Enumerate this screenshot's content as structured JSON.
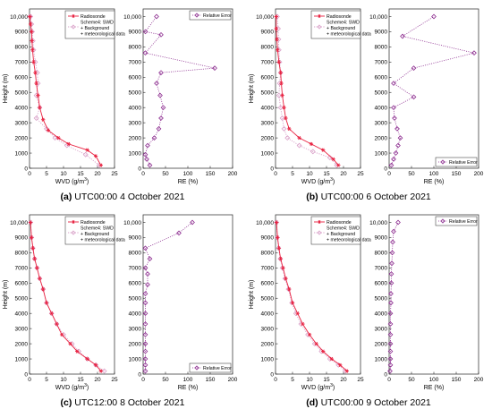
{
  "figure": {
    "panels": [
      {
        "caption_letter": "(a)",
        "caption_text": " UTC00:00 4 October 2021",
        "legend_wvd": {
          "radiosonde": "Radiosonde",
          "scheme_line1": "Scheme4: SWD",
          "scheme_line2": "+ Background",
          "scheme_line3": "+ meteorological data"
        },
        "legend_re": "Relative Error",
        "legend_re_position": "top",
        "wvd_chart": {
          "type": "line",
          "ylabel": "Height (m)",
          "xlabel_prefix": "WVD (g/m",
          "xlabel_sup": "3",
          "xlabel_suffix": ")",
          "xlim": [
            0,
            25
          ],
          "ylim": [
            0,
            10500
          ],
          "xticks": [
            "0",
            "5",
            "10",
            "15",
            "20",
            "25"
          ],
          "yticks": [
            "0",
            "1000",
            "2000",
            "3000",
            "4000",
            "5000",
            "6000",
            "7000",
            "8000",
            "9000",
            "10,000"
          ],
          "series": [
            {
              "name": "Radiosonde",
              "x": [
                21.0,
                19.5,
                17.0,
                11.5,
                8.5,
                5.5,
                4.0,
                3.0,
                2.5,
                2.0,
                1.7,
                1.2,
                0.9,
                0.7,
                0.6,
                0.3,
                0.1
              ],
              "y": [
                200,
                800,
                1200,
                1600,
                2000,
                2500,
                3200,
                4000,
                4800,
                5600,
                6300,
                7000,
                7800,
                8400,
                9000,
                9500,
                10000
              ]
            },
            {
              "name": "Scheme4: SWD + Background + meteorological data",
              "x": [
                20.5,
                16.5,
                11.0,
                7.5,
                5.0,
                2.0,
                3.0,
                2.0,
                2.5,
                2.3,
                1.7,
                1.2,
                1.0,
                0.8,
                0.6,
                0.3,
                0.1
              ],
              "y": [
                200,
                900,
                1500,
                2000,
                2600,
                3300,
                4000,
                4800,
                5600,
                6300,
                7000,
                7800,
                8400,
                9000,
                9500,
                10000,
                10000
              ]
            }
          ]
        },
        "re_chart": {
          "type": "line",
          "xlabel": "RE (%)",
          "xlim": [
            0,
            200
          ],
          "ylim": [
            0,
            10500
          ],
          "xticks": [
            "0",
            "50",
            "100",
            "150",
            "200"
          ],
          "yticks": [
            "0",
            "1000",
            "2000",
            "3000",
            "4000",
            "5000",
            "6000",
            "7000",
            "8000",
            "9000",
            "10,000"
          ],
          "series": [
            {
              "name": "Relative Error",
              "x": [
                15,
                8,
                5,
                10,
                25,
                35,
                40,
                45,
                38,
                30,
                40,
                160,
                5,
                40,
                5,
                30
              ],
              "y": [
                200,
                600,
                900,
                1500,
                2000,
                2600,
                3300,
                4000,
                4800,
                5600,
                6300,
                6600,
                7600,
                8800,
                9000,
                10000
              ]
            }
          ]
        }
      },
      {
        "caption_letter": "(b)",
        "caption_text": " UTC00:00 6 October 2021",
        "legend_wvd": {
          "radiosonde": "Radiosonde",
          "scheme_line1": "Scheme4: SWD",
          "scheme_line2": "+ Background",
          "scheme_line3": "+ meteorological data"
        },
        "legend_re": "Relative Error",
        "legend_re_position": "bottom",
        "wvd_chart": {
          "type": "line",
          "ylabel": "Height (m)",
          "xlabel_prefix": "WVD (g/m",
          "xlabel_sup": "3",
          "xlabel_suffix": ")",
          "xlim": [
            0,
            25
          ],
          "ylim": [
            0,
            10500
          ],
          "xticks": [
            "0",
            "5",
            "10",
            "15",
            "20",
            "25"
          ],
          "yticks": [
            "0",
            "1000",
            "2000",
            "3000",
            "4000",
            "5000",
            "6000",
            "7000",
            "8000",
            "9000",
            "10,000"
          ],
          "series": [
            {
              "name": "Radiosonde",
              "x": [
                18.5,
                17.0,
                14.0,
                10.5,
                7.0,
                4.0,
                3.0,
                2.5,
                2.0,
                1.7,
                1.5,
                1.0,
                0.6,
                0.4,
                0.2,
                0.2
              ],
              "y": [
                200,
                600,
                1200,
                1600,
                2000,
                2600,
                3300,
                4000,
                4800,
                5600,
                6300,
                7000,
                7800,
                8500,
                9200,
                10000
              ]
            },
            {
              "name": "Scheme4: SWD + Background + meteorological data",
              "x": [
                18.0,
                16.0,
                11.0,
                7.0,
                3.5,
                2.5,
                2.0,
                1.5,
                1.0,
                1.2,
                1.5,
                1.2,
                1.0,
                0.9,
                0.8,
                0.5
              ],
              "y": [
                200,
                700,
                1100,
                1500,
                2000,
                2600,
                3300,
                4000,
                4800,
                5600,
                6300,
                7000,
                7800,
                8500,
                9200,
                10000
              ]
            }
          ]
        },
        "re_chart": {
          "type": "line",
          "xlabel": "RE (%)",
          "xlim": [
            0,
            200
          ],
          "ylim": [
            0,
            10500
          ],
          "xticks": [
            "0",
            "50",
            "100",
            "150",
            "200"
          ],
          "yticks": [
            "0",
            "1000",
            "2000",
            "3000",
            "4000",
            "5000",
            "6000",
            "7000",
            "8000",
            "9000",
            "10,000"
          ],
          "series": [
            {
              "name": "Relative Error",
              "x": [
                5,
                10,
                15,
                20,
                25,
                18,
                12,
                10,
                55,
                10,
                55,
                190,
                30,
                100
              ],
              "y": [
                200,
                600,
                1000,
                1500,
                2000,
                2600,
                3300,
                4000,
                4700,
                5600,
                6600,
                7600,
                8700,
                10000
              ]
            }
          ]
        }
      },
      {
        "caption_letter": "(c)",
        "caption_text": " UTC12:00 8 October 2021",
        "legend_wvd": {
          "radiosonde": "Radiosonde",
          "scheme_line1": "Scheme4: SWD",
          "scheme_line2": "+ Background",
          "scheme_line3": "+ meteorological data"
        },
        "legend_re": "Relative Error",
        "legend_re_position": "bottom",
        "wvd_chart": {
          "type": "line",
          "ylabel": "Height (m)",
          "xlabel_prefix": "WVD (g/m",
          "xlabel_sup": "3",
          "xlabel_suffix": ")",
          "xlim": [
            0,
            25
          ],
          "ylim": [
            0,
            10500
          ],
          "xticks": [
            "0",
            "5",
            "10",
            "15",
            "20",
            "25"
          ],
          "yticks": [
            "0",
            "1000",
            "2000",
            "3000",
            "4000",
            "5000",
            "6000",
            "7000",
            "8000",
            "9000",
            "10,000"
          ],
          "series": [
            {
              "name": "Radiosonde",
              "x": [
                21.0,
                19.5,
                17.0,
                14.0,
                12.0,
                9.5,
                8.0,
                6.5,
                5.0,
                4.0,
                3.0,
                2.2,
                1.5,
                1.0,
                0.6,
                0.3
              ],
              "y": [
                200,
                600,
                1000,
                1500,
                2000,
                2600,
                3300,
                4000,
                4700,
                5600,
                6300,
                7000,
                7600,
                8300,
                9000,
                10000
              ]
            },
            {
              "name": "Scheme4: SWD + Background + meteorological data",
              "x": [
                22.0,
                19.5,
                17.0,
                14.5,
                12.5,
                10.0,
                8.0,
                6.5,
                5.0,
                4.0,
                3.0,
                2.2,
                1.5,
                1.0,
                0.6,
                0.3
              ],
              "y": [
                200,
                600,
                1000,
                1500,
                2000,
                2600,
                3300,
                4000,
                4700,
                5600,
                6300,
                7000,
                7600,
                8300,
                9000,
                10000
              ]
            }
          ]
        },
        "re_chart": {
          "type": "line",
          "xlabel": "RE (%)",
          "xlim": [
            0,
            200
          ],
          "ylim": [
            0,
            10500
          ],
          "xticks": [
            "0",
            "50",
            "100",
            "150",
            "200"
          ],
          "yticks": [
            "0",
            "1000",
            "2000",
            "3000",
            "4000",
            "5000",
            "6000",
            "7000",
            "8000",
            "9000",
            "10,000"
          ],
          "series": [
            {
              "name": "Relative Error",
              "x": [
                5,
                5,
                5,
                5,
                5,
                5,
                5,
                5,
                5,
                5,
                10,
                10,
                5,
                15,
                5,
                80,
                110
              ],
              "y": [
                200,
                600,
                1000,
                1500,
                2000,
                2600,
                3300,
                4000,
                4700,
                5300,
                5900,
                6600,
                7000,
                7600,
                8300,
                9300,
                10000
              ]
            }
          ]
        }
      },
      {
        "caption_letter": "(d)",
        "caption_text": " UTC00:00 9 October 2021",
        "legend_wvd": {
          "radiosonde": "Radiosonde",
          "scheme_line1": "Scheme4: SWD",
          "scheme_line2": "+ Background",
          "scheme_line3": "+ meteorological data"
        },
        "legend_re": "Relative Error",
        "legend_re_position": "top",
        "wvd_chart": {
          "type": "line",
          "ylabel": "Height (m)",
          "xlabel_prefix": "WVD (g/m",
          "xlabel_sup": "3",
          "xlabel_suffix": ")",
          "xlim": [
            0,
            25
          ],
          "ylim": [
            0,
            10500
          ],
          "xticks": [
            "0",
            "5",
            "10",
            "15",
            "20",
            "25"
          ],
          "yticks": [
            "0",
            "1000",
            "2000",
            "3000",
            "4000",
            "5000",
            "6000",
            "7000",
            "8000",
            "9000",
            "10,000"
          ],
          "series": [
            {
              "name": "Radiosonde",
              "x": [
                21.0,
                19.0,
                16.5,
                14.0,
                12.0,
                10.0,
                8.0,
                6.5,
                5.0,
                4.0,
                3.0,
                2.2,
                1.5,
                1.0,
                0.6,
                0.3
              ],
              "y": [
                200,
                600,
                1000,
                1500,
                2000,
                2600,
                3300,
                4000,
                4700,
                5600,
                6300,
                7000,
                7600,
                8300,
                9000,
                10000
              ]
            },
            {
              "name": "Scheme4: SWD + Background + meteorological data",
              "x": [
                20.5,
                18.5,
                16.0,
                13.5,
                11.5,
                9.5,
                7.5,
                6.0,
                4.8,
                3.8,
                2.8,
                2.0,
                1.4,
                0.9,
                0.5,
                0.3
              ],
              "y": [
                200,
                600,
                1000,
                1500,
                2000,
                2600,
                3300,
                4000,
                4700,
                5600,
                6300,
                7000,
                7600,
                8300,
                9000,
                10000
              ]
            }
          ]
        },
        "re_chart": {
          "type": "line",
          "xlabel": "RE (%)",
          "xlim": [
            0,
            200
          ],
          "ylim": [
            0,
            10500
          ],
          "xticks": [
            "0",
            "50",
            "100",
            "150",
            "200"
          ],
          "yticks": [
            "0",
            "1000",
            "2000",
            "3000",
            "4000",
            "5000",
            "6000",
            "7000",
            "8000",
            "9000",
            "10,000"
          ],
          "series": [
            {
              "name": "Relative Error",
              "x": [
                2,
                3,
                3,
                3,
                3,
                3,
                3,
                3,
                4,
                4,
                5,
                5,
                6,
                7,
                8,
                10,
                20
              ],
              "y": [
                200,
                600,
                1000,
                1500,
                2000,
                2600,
                3300,
                4000,
                4700,
                5300,
                6000,
                6600,
                7300,
                8000,
                8700,
                9400,
                10000
              ]
            }
          ]
        }
      }
    ]
  },
  "colors": {
    "radiosonde": "#e8203f",
    "scheme": "#d9a0c8",
    "relative_error": "#8b2a8e",
    "axis": "#262626",
    "text": "#000000"
  }
}
